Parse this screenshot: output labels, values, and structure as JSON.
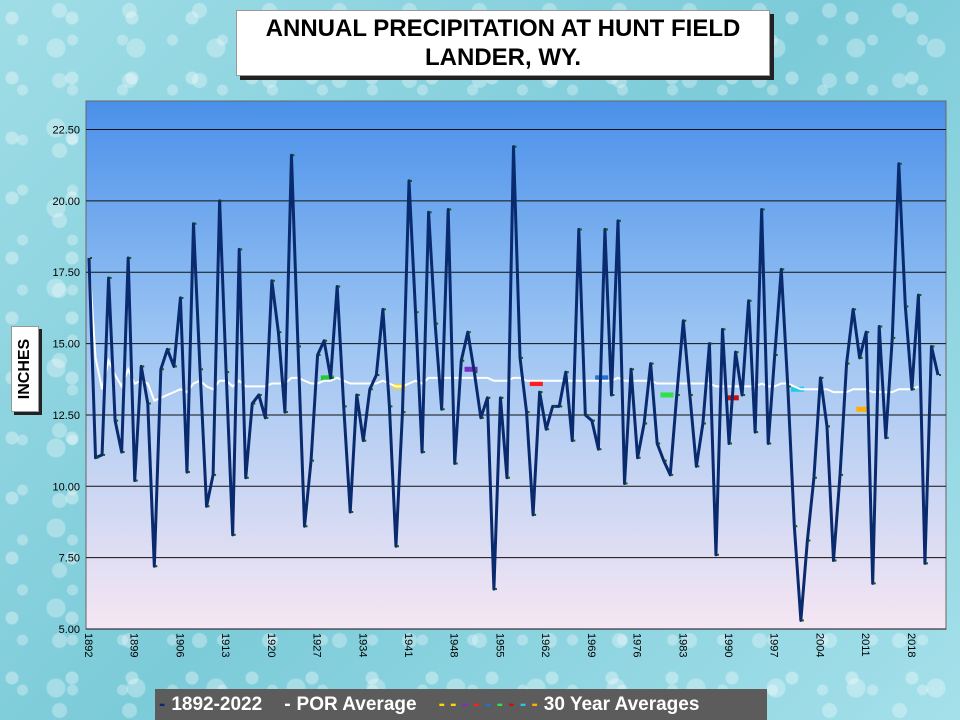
{
  "title_line1": "ANNUAL PRECIPITATION AT HUNT FIELD",
  "title_line2": "LANDER, WY.",
  "chart_data": {
    "type": "line",
    "ylabel": "INCHES",
    "ylim": [
      5.0,
      23.5
    ],
    "yticks": [
      "5.00",
      "7.50",
      "10.00",
      "12.50",
      "15.00",
      "17.50",
      "20.00",
      "22.50"
    ],
    "ytick_values": [
      5,
      7.5,
      10,
      12.5,
      15,
      17.5,
      20,
      22.5
    ],
    "xlim": [
      1892,
      2022
    ],
    "xticks": [
      "1892",
      "1899",
      "1906",
      "1913",
      "1920",
      "1927",
      "1934",
      "1941",
      "1948",
      "1955",
      "1962",
      "1969",
      "1976",
      "1983",
      "1990",
      "1997",
      "2004",
      "2011",
      "2018"
    ],
    "grid": true,
    "series": [
      {
        "name": "1892-2022",
        "color": "#0a2a6e",
        "start_year": 1892,
        "values": [
          18.0,
          11.0,
          11.1,
          17.3,
          12.3,
          11.2,
          18.0,
          10.2,
          14.2,
          12.9,
          7.2,
          14.1,
          14.8,
          14.2,
          16.6,
          10.5,
          19.2,
          14.1,
          9.3,
          10.4,
          20.0,
          14.0,
          8.3,
          18.3,
          10.3,
          12.9,
          13.2,
          12.4,
          17.2,
          15.4,
          12.6,
          21.6,
          14.9,
          8.6,
          10.9,
          14.6,
          15.1,
          13.8,
          17.0,
          12.8,
          9.1,
          13.2,
          11.6,
          13.4,
          13.9,
          16.2,
          12.8,
          7.9,
          12.6,
          20.7,
          16.1,
          11.2,
          19.6,
          15.7,
          12.7,
          19.7,
          10.8,
          14.4,
          15.4,
          14.0,
          12.4,
          13.1,
          6.4,
          13.1,
          10.3,
          21.9,
          14.5,
          12.6,
          9.0,
          13.3,
          12.0,
          12.8,
          12.8,
          14.0,
          11.6,
          19.0,
          12.5,
          12.3,
          11.3,
          19.0,
          13.2,
          19.3,
          10.1,
          14.1,
          11.0,
          12.2,
          14.3,
          11.5,
          10.9,
          10.4,
          13.2,
          15.8,
          13.2,
          10.7,
          12.2,
          15.0,
          7.6,
          15.5,
          11.5,
          14.7,
          13.2,
          16.5,
          11.9,
          19.7,
          11.5,
          14.6,
          17.6,
          13.5,
          8.6,
          5.3,
          8.1,
          10.3,
          13.8,
          12.1,
          7.4,
          10.4,
          14.3,
          16.2,
          14.5,
          15.4,
          6.6,
          15.6,
          11.7,
          15.2,
          21.3,
          16.3,
          13.4,
          16.7,
          7.3,
          14.9,
          13.9
        ]
      },
      {
        "name": "POR Average",
        "color": "#ffffff",
        "start_year": 1892,
        "values": [
          18.0,
          14.5,
          13.4,
          14.4,
          13.9,
          13.5,
          14.1,
          13.6,
          13.7,
          13.6,
          13.0,
          13.1,
          13.2,
          13.3,
          13.4,
          13.3,
          13.6,
          13.7,
          13.5,
          13.4,
          13.7,
          13.7,
          13.5,
          13.7,
          13.5,
          13.5,
          13.5,
          13.5,
          13.6,
          13.6,
          13.6,
          13.8,
          13.8,
          13.7,
          13.6,
          13.6,
          13.7,
          13.7,
          13.8,
          13.7,
          13.6,
          13.6,
          13.6,
          13.6,
          13.6,
          13.7,
          13.6,
          13.5,
          13.5,
          13.6,
          13.7,
          13.6,
          13.8,
          13.8,
          13.8,
          13.8,
          13.8,
          13.8,
          13.8,
          13.8,
          13.8,
          13.8,
          13.7,
          13.7,
          13.7,
          13.8,
          13.8,
          13.7,
          13.7,
          13.7,
          13.7,
          13.7,
          13.7,
          13.7,
          13.7,
          13.7,
          13.7,
          13.7,
          13.7,
          13.7,
          13.7,
          13.8,
          13.7,
          13.7,
          13.7,
          13.7,
          13.7,
          13.6,
          13.6,
          13.6,
          13.6,
          13.6,
          13.6,
          13.6,
          13.6,
          13.6,
          13.5,
          13.5,
          13.5,
          13.5,
          13.5,
          13.5,
          13.5,
          13.6,
          13.5,
          13.5,
          13.6,
          13.6,
          13.5,
          13.4,
          13.4,
          13.4,
          13.4,
          13.4,
          13.3,
          13.3,
          13.3,
          13.4,
          13.4,
          13.4,
          13.3,
          13.3,
          13.3,
          13.3,
          13.4,
          13.4,
          13.4,
          13.5
        ]
      }
    ],
    "thirty_year_averages": {
      "name": "30 Year Averages",
      "segments": [
        {
          "x0": 1927.5,
          "x1": 1929.5,
          "value": 13.8,
          "color": "#22c93a"
        },
        {
          "x0": 1938.5,
          "x1": 1940.5,
          "value": 13.5,
          "color": "#ffd800"
        },
        {
          "x0": 1949.5,
          "x1": 1951.5,
          "value": 14.1,
          "color": "#7a2fc2"
        },
        {
          "x0": 1959.5,
          "x1": 1961.5,
          "value": 13.6,
          "color": "#ff1e1e"
        },
        {
          "x0": 1969.5,
          "x1": 1971.5,
          "value": 13.8,
          "color": "#1e73d2"
        },
        {
          "x0": 1979.5,
          "x1": 1981.5,
          "value": 13.2,
          "color": "#2ee04a"
        },
        {
          "x0": 1989.5,
          "x1": 1991.5,
          "value": 13.1,
          "color": "#c81010"
        },
        {
          "x0": 1999.5,
          "x1": 2001.5,
          "value": 13.4,
          "color": "#1ecbe6"
        },
        {
          "x0": 2009.5,
          "x1": 2011.5,
          "value": 12.7,
          "color": "#ffb000"
        }
      ]
    }
  },
  "legend": {
    "items": [
      {
        "symbol": "-",
        "label": "1892-2022",
        "color": "#0a2a6e"
      },
      {
        "symbol": "-",
        "label": "POR Average",
        "color": "#ffffff"
      },
      {
        "symbol": "- - - - - - - -",
        "label": "30 Year Averages",
        "color": "#ffd800"
      }
    ]
  }
}
